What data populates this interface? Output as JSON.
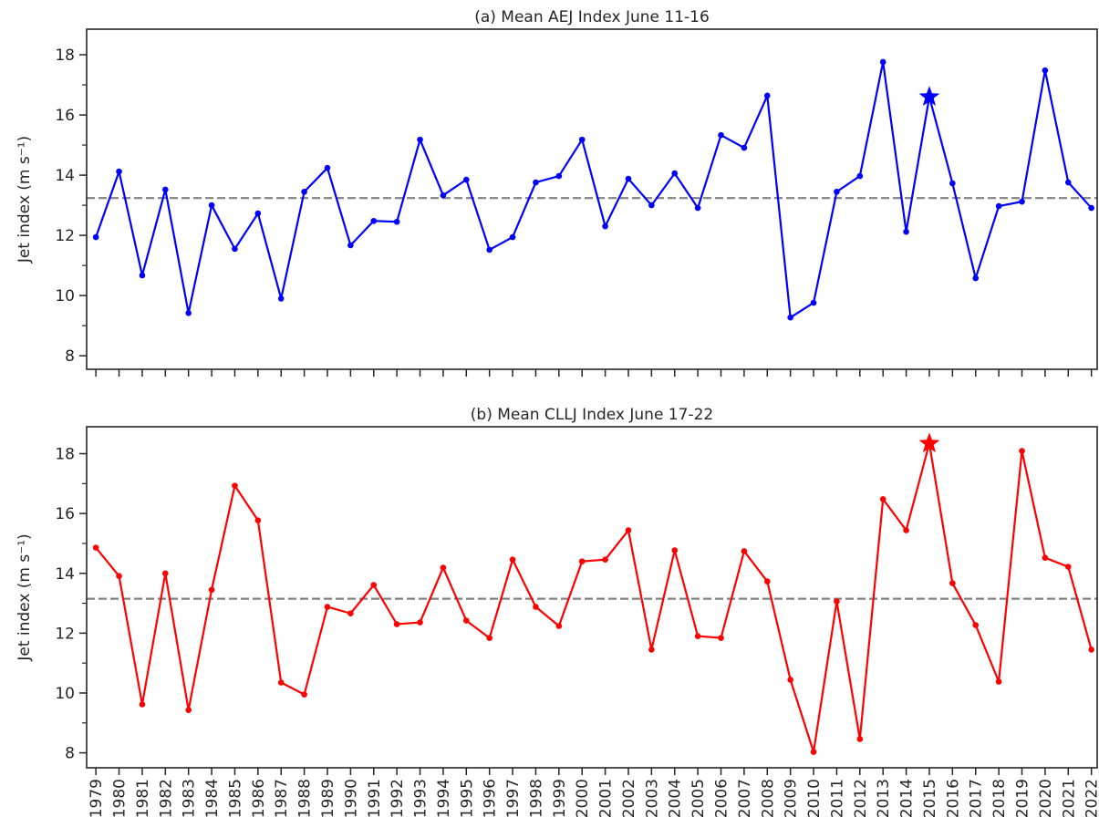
{
  "chart_data": [
    {
      "type": "line",
      "title": "(a) Mean AEJ Index June 11-16",
      "ylabel": "Jet index (m s⁻¹)",
      "color": "#0000ff",
      "x": [
        1979,
        1980,
        1981,
        1982,
        1983,
        1984,
        1985,
        1986,
        1987,
        1988,
        1989,
        1990,
        1991,
        1992,
        1993,
        1994,
        1995,
        1996,
        1997,
        1998,
        1999,
        2000,
        2001,
        2002,
        2003,
        2004,
        2005,
        2006,
        2007,
        2008,
        2009,
        2010,
        2011,
        2012,
        2013,
        2014,
        2015,
        2016,
        2017,
        2018,
        2019,
        2020,
        2021,
        2022
      ],
      "values": [
        11.94,
        14.12,
        10.67,
        13.52,
        9.42,
        13.0,
        11.55,
        12.73,
        9.9,
        13.45,
        14.24,
        11.67,
        12.48,
        12.45,
        15.18,
        13.33,
        13.85,
        11.52,
        11.94,
        13.76,
        13.97,
        15.18,
        12.3,
        13.88,
        13.0,
        14.06,
        12.91,
        15.33,
        14.91,
        16.64,
        9.27,
        9.76,
        13.45,
        13.97,
        17.76,
        12.12,
        16.6,
        13.73,
        10.58,
        12.97,
        13.12,
        17.48,
        13.76,
        12.91
      ],
      "mean": 13.24,
      "mean_color": "#808080",
      "highlight_x": 2015,
      "xlim": [
        1978.6,
        2022.25
      ],
      "ylim": [
        7.55,
        18.85
      ],
      "yticks": [
        8,
        10,
        12,
        14,
        16,
        18
      ],
      "yminorticks": [
        9,
        11,
        13,
        15,
        17
      ],
      "xticks": [
        1979,
        1980,
        1981,
        1982,
        1983,
        1984,
        1985,
        1986,
        1987,
        1988,
        1989,
        1990,
        1991,
        1992,
        1993,
        1994,
        1995,
        1996,
        1997,
        1998,
        1999,
        2000,
        2001,
        2002,
        2003,
        2004,
        2005,
        2006,
        2007,
        2008,
        2009,
        2010,
        2011,
        2012,
        2013,
        2014,
        2015,
        2016,
        2017,
        2018,
        2019,
        2020,
        2021,
        2022
      ],
      "xticklabels": false
    },
    {
      "type": "line",
      "title": "(b) Mean CLLJ Index June 17-22",
      "ylabel": "Jet index (m s⁻¹)",
      "color": "#ff0000",
      "x": [
        1979,
        1980,
        1981,
        1982,
        1983,
        1984,
        1985,
        1986,
        1987,
        1988,
        1989,
        1990,
        1991,
        1992,
        1993,
        1994,
        1995,
        1996,
        1997,
        1998,
        1999,
        2000,
        2001,
        2002,
        2003,
        2004,
        2005,
        2006,
        2007,
        2008,
        2009,
        2010,
        2011,
        2012,
        2013,
        2014,
        2015,
        2016,
        2017,
        2018,
        2019,
        2020,
        2021,
        2022
      ],
      "values": [
        14.86,
        13.91,
        9.62,
        14.0,
        9.43,
        13.45,
        16.93,
        15.77,
        10.35,
        9.95,
        12.88,
        12.66,
        13.61,
        12.3,
        12.36,
        14.19,
        12.42,
        11.84,
        14.46,
        12.88,
        12.24,
        14.4,
        14.46,
        15.44,
        11.45,
        14.77,
        11.9,
        11.84,
        14.74,
        13.73,
        10.44,
        8.03,
        13.06,
        8.46,
        16.48,
        15.44,
        18.34,
        13.67,
        12.27,
        10.38,
        18.09,
        14.52,
        14.22,
        11.45
      ],
      "mean": 13.15,
      "mean_color": "#808080",
      "highlight_x": 2015,
      "xlim": [
        1978.6,
        2022.25
      ],
      "ylim": [
        7.5,
        18.9
      ],
      "yticks": [
        8,
        10,
        12,
        14,
        16,
        18
      ],
      "yminorticks": [
        9,
        11,
        13,
        15,
        17
      ],
      "xticks": [
        1979,
        1980,
        1981,
        1982,
        1983,
        1984,
        1985,
        1986,
        1987,
        1988,
        1989,
        1990,
        1991,
        1992,
        1993,
        1994,
        1995,
        1996,
        1997,
        1998,
        1999,
        2000,
        2001,
        2002,
        2003,
        2004,
        2005,
        2006,
        2007,
        2008,
        2009,
        2010,
        2011,
        2012,
        2013,
        2014,
        2015,
        2016,
        2017,
        2018,
        2019,
        2020,
        2021,
        2022
      ],
      "xticklabels": true
    }
  ]
}
